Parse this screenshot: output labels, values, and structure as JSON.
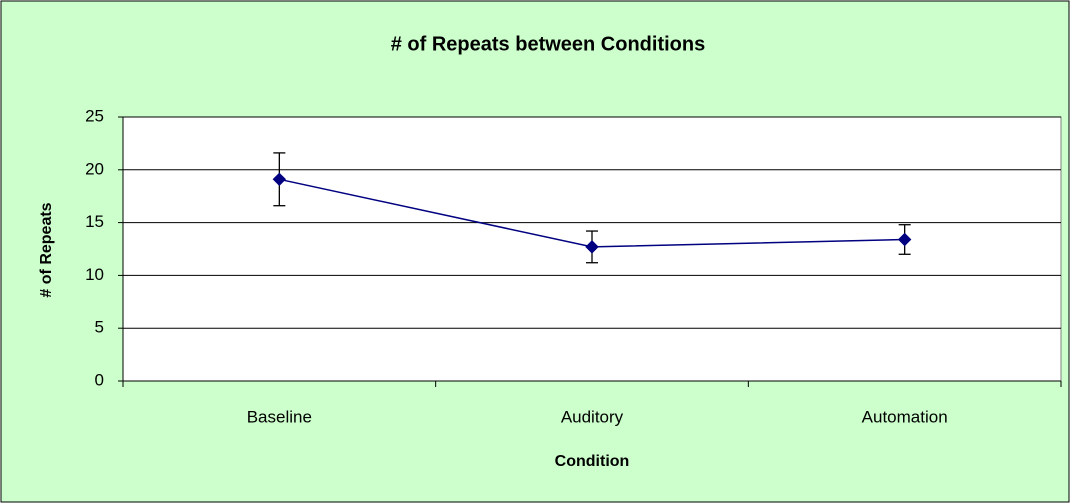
{
  "chart_data": {
    "type": "line",
    "title": "# of Repeats between Conditions",
    "x_label": "Condition",
    "y_label": "# of Repeats",
    "categories": [
      "Baseline",
      "Auditory",
      "Automation"
    ],
    "values": [
      19.1,
      12.7,
      13.4
    ],
    "errors": [
      2.5,
      1.5,
      1.4
    ],
    "color": "#000080",
    "ylim": [
      0,
      25
    ],
    "yticks": [
      0,
      5,
      10,
      15,
      20,
      25
    ],
    "grid": true
  }
}
